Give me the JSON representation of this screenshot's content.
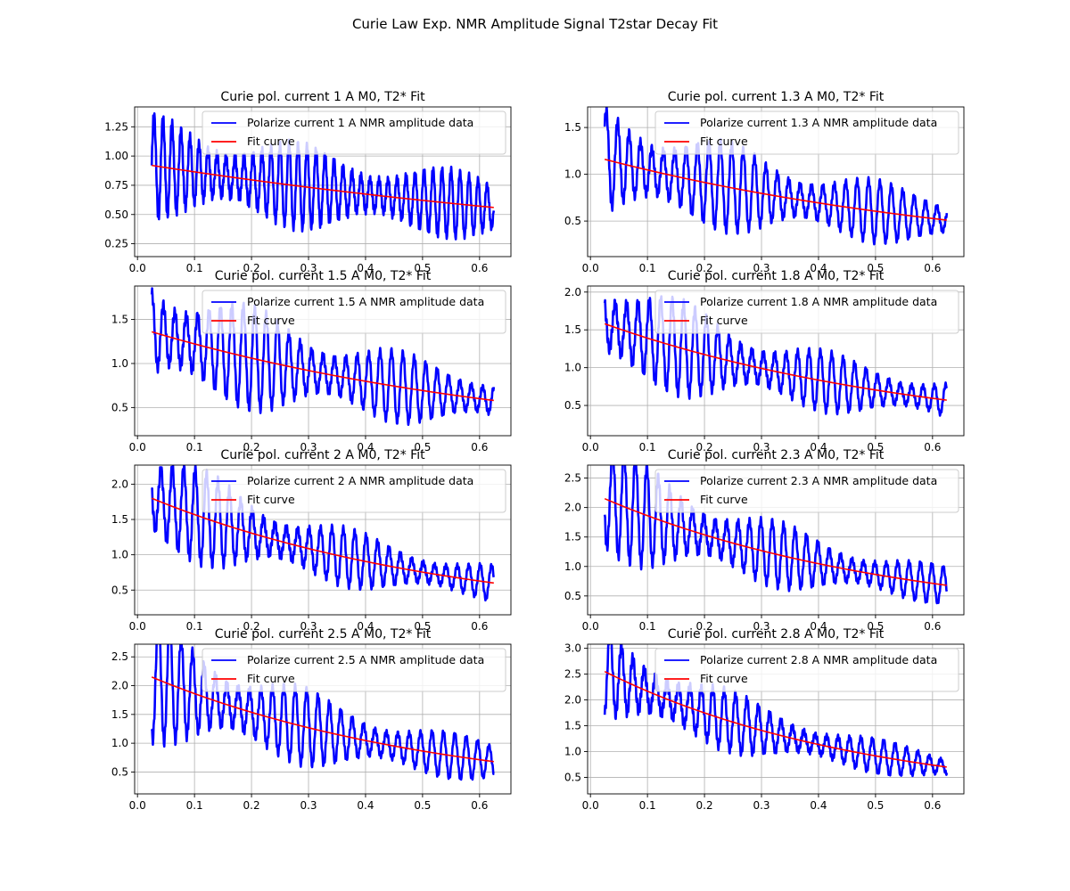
{
  "figure_title": "Curie Law Exp. NMR Amplitude Signal T2star Decay Fit",
  "colors": {
    "data": "#0000ff",
    "fit": "#ff0000",
    "grid": "#b0b0b0",
    "axes": "#000000"
  },
  "chart_data": [
    {
      "type": "line",
      "title": "Curie pol. current 1 A M0, T2* Fit",
      "xlim": [
        -0.005,
        0.655
      ],
      "ylim": [
        0.14,
        1.42
      ],
      "xticks": [
        0.0,
        0.1,
        0.2,
        0.3,
        0.4,
        0.5,
        0.6
      ],
      "xtick_labels": [
        "0.0",
        "0.1",
        "0.2",
        "0.3",
        "0.4",
        "0.5",
        "0.6"
      ],
      "yticks": [
        0.25,
        0.5,
        0.75,
        1.0,
        1.25
      ],
      "ytick_labels": [
        "0.25",
        "0.50",
        "0.75",
        "1.00",
        "1.25"
      ],
      "grid": true,
      "legend_position": "upper-right",
      "x_range": [
        0.025,
        0.625
      ],
      "series": [
        {
          "name": "Polarize current 1 A NMR amplitude data",
          "kind": "data",
          "envelope_start": 0.92,
          "envelope_end": 0.56,
          "amplitude": 0.4,
          "cycles": 38
        },
        {
          "name": "Fit curve",
          "kind": "fit",
          "start": 0.92,
          "end": 0.56
        }
      ]
    },
    {
      "type": "line",
      "title": "Curie pol. current 1.3 A M0, T2* Fit",
      "xlim": [
        -0.005,
        0.655
      ],
      "ylim": [
        0.12,
        1.72
      ],
      "xticks": [
        0.0,
        0.1,
        0.2,
        0.3,
        0.4,
        0.5,
        0.6
      ],
      "xtick_labels": [
        "0.0",
        "0.1",
        "0.2",
        "0.3",
        "0.4",
        "0.5",
        "0.6"
      ],
      "yticks": [
        0.5,
        1.0,
        1.5
      ],
      "ytick_labels": [
        "0.5",
        "1.0",
        "1.5"
      ],
      "grid": true,
      "legend_position": "upper-right",
      "x_range": [
        0.025,
        0.625
      ],
      "series": [
        {
          "name": "Polarize current 1.3 A NMR amplitude data",
          "kind": "data",
          "envelope_start": 1.16,
          "envelope_end": 0.51,
          "amplitude": 0.45,
          "cycles": 30
        },
        {
          "name": "Fit curve",
          "kind": "fit",
          "start": 1.16,
          "end": 0.51
        }
      ]
    },
    {
      "type": "line",
      "title": "Curie pol. current 1.5 A M0, T2* Fit",
      "xlim": [
        -0.005,
        0.655
      ],
      "ylim": [
        0.18,
        1.88
      ],
      "xticks": [
        0.0,
        0.1,
        0.2,
        0.3,
        0.4,
        0.5,
        0.6
      ],
      "xtick_labels": [
        "0.0",
        "0.1",
        "0.2",
        "0.3",
        "0.4",
        "0.5",
        "0.6"
      ],
      "yticks": [
        0.5,
        1.0,
        1.5
      ],
      "ytick_labels": [
        "0.5",
        "1.0",
        "1.5"
      ],
      "grid": true,
      "legend_position": "upper-right",
      "x_range": [
        0.025,
        0.625
      ],
      "series": [
        {
          "name": "Polarize current 1.5 A NMR amplitude data",
          "kind": "data",
          "envelope_start": 1.36,
          "envelope_end": 0.58,
          "amplitude": 0.45,
          "cycles": 30
        },
        {
          "name": "Fit curve",
          "kind": "fit",
          "start": 1.36,
          "end": 0.58
        }
      ]
    },
    {
      "type": "line",
      "title": "Curie pol. current 1.8 A M0, T2* Fit",
      "xlim": [
        -0.005,
        0.655
      ],
      "ylim": [
        0.1,
        2.08
      ],
      "xticks": [
        0.0,
        0.1,
        0.2,
        0.3,
        0.4,
        0.5,
        0.6
      ],
      "xtick_labels": [
        "0.0",
        "0.1",
        "0.2",
        "0.3",
        "0.4",
        "0.5",
        "0.6"
      ],
      "yticks": [
        0.5,
        1.0,
        1.5,
        2.0
      ],
      "ytick_labels": [
        "0.5",
        "1.0",
        "1.5",
        "2.0"
      ],
      "grid": true,
      "legend_position": "upper-right",
      "x_range": [
        0.025,
        0.625
      ],
      "series": [
        {
          "name": "Polarize current 1.8 A NMR amplitude data",
          "kind": "data",
          "envelope_start": 1.58,
          "envelope_end": 0.57,
          "amplitude": 0.4,
          "cycles": 30
        },
        {
          "name": "Fit curve",
          "kind": "fit",
          "start": 1.58,
          "end": 0.57
        }
      ]
    },
    {
      "type": "line",
      "title": "Curie pol. current 2 A M0, T2* Fit",
      "xlim": [
        -0.005,
        0.655
      ],
      "ylim": [
        0.15,
        2.27
      ],
      "xticks": [
        0.0,
        0.1,
        0.2,
        0.3,
        0.4,
        0.5,
        0.6
      ],
      "xtick_labels": [
        "0.0",
        "0.1",
        "0.2",
        "0.3",
        "0.4",
        "0.5",
        "0.6"
      ],
      "yticks": [
        0.5,
        1.0,
        1.5,
        2.0
      ],
      "ytick_labels": [
        "0.5",
        "1.0",
        "1.5",
        "2.0"
      ],
      "grid": true,
      "legend_position": "upper-right",
      "x_range": [
        0.025,
        0.625
      ],
      "series": [
        {
          "name": "Polarize current 2 A NMR amplitude data",
          "kind": "data",
          "envelope_start": 1.8,
          "envelope_end": 0.6,
          "amplitude": 0.35,
          "cycles": 30
        },
        {
          "name": "Fit curve",
          "kind": "fit",
          "start": 1.8,
          "end": 0.6
        }
      ]
    },
    {
      "type": "line",
      "title": "Curie pol. current 2.3 A M0, T2* Fit",
      "xlim": [
        -0.005,
        0.655
      ],
      "ylim": [
        0.18,
        2.72
      ],
      "xticks": [
        0.0,
        0.1,
        0.2,
        0.3,
        0.4,
        0.5,
        0.6
      ],
      "xtick_labels": [
        "0.0",
        "0.1",
        "0.2",
        "0.3",
        "0.4",
        "0.5",
        "0.6"
      ],
      "yticks": [
        0.5,
        1.0,
        1.5,
        2.0,
        2.5
      ],
      "ytick_labels": [
        "0.5",
        "1.0",
        "1.5",
        "2.0",
        "2.5"
      ],
      "grid": true,
      "legend_position": "upper-right",
      "x_range": [
        0.025,
        0.625
      ],
      "series": [
        {
          "name": "Polarize current 2.3 A NMR amplitude data",
          "kind": "data",
          "envelope_start": 2.15,
          "envelope_end": 0.68,
          "amplitude": 0.38,
          "cycles": 30
        },
        {
          "name": "Fit curve",
          "kind": "fit",
          "start": 2.15,
          "end": 0.68
        }
      ]
    },
    {
      "type": "line",
      "title": "Curie pol. current 2.5 A M0, T2* Fit",
      "xlim": [
        -0.005,
        0.655
      ],
      "ylim": [
        0.12,
        2.72
      ],
      "xticks": [
        0.0,
        0.1,
        0.2,
        0.3,
        0.4,
        0.5,
        0.6
      ],
      "xtick_labels": [
        "0.0",
        "0.1",
        "0.2",
        "0.3",
        "0.4",
        "0.5",
        "0.6"
      ],
      "yticks": [
        0.5,
        1.0,
        1.5,
        2.0,
        2.5
      ],
      "ytick_labels": [
        "0.5",
        "1.0",
        "1.5",
        "2.0",
        "2.5"
      ],
      "grid": true,
      "legend_position": "upper-right",
      "x_range": [
        0.025,
        0.625
      ],
      "series": [
        {
          "name": "Polarize current 2.5 A NMR amplitude data",
          "kind": "data",
          "envelope_start": 2.15,
          "envelope_end": 0.68,
          "amplitude": 0.42,
          "cycles": 30
        },
        {
          "name": "Fit curve",
          "kind": "fit",
          "start": 2.15,
          "end": 0.68
        }
      ]
    },
    {
      "type": "line",
      "title": "Curie pol. current 2.8 A M0, T2* Fit",
      "xlim": [
        -0.005,
        0.655
      ],
      "ylim": [
        0.18,
        3.08
      ],
      "xticks": [
        0.0,
        0.1,
        0.2,
        0.3,
        0.4,
        0.5,
        0.6
      ],
      "xtick_labels": [
        "0.0",
        "0.1",
        "0.2",
        "0.3",
        "0.4",
        "0.5",
        "0.6"
      ],
      "yticks": [
        0.5,
        1.0,
        1.5,
        2.0,
        2.5,
        3.0
      ],
      "ytick_labels": [
        "0.5",
        "1.0",
        "1.5",
        "2.0",
        "2.5",
        "3.0"
      ],
      "grid": true,
      "legend_position": "upper-right",
      "x_range": [
        0.025,
        0.625
      ],
      "series": [
        {
          "name": "Polarize current 2.8 A NMR amplitude data",
          "kind": "data",
          "envelope_start": 2.55,
          "envelope_end": 0.7,
          "amplitude": 0.3,
          "cycles": 30
        },
        {
          "name": "Fit curve",
          "kind": "fit",
          "start": 2.55,
          "end": 0.7
        }
      ]
    }
  ]
}
